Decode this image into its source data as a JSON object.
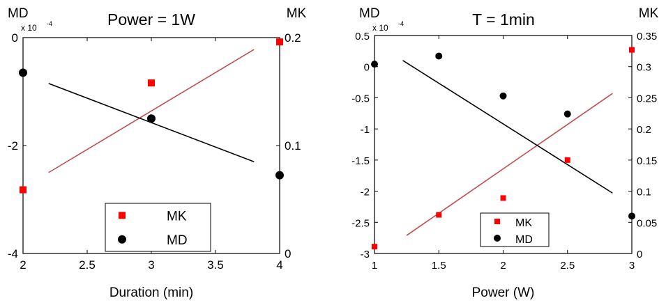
{
  "chart_data": [
    {
      "type": "scatter",
      "title": "Power = 1W",
      "xlabel": "Duration (min)",
      "y_left_label": "MD",
      "y_left_exponent": "x 10",
      "y_left_exponent_power": "-4",
      "y_right_label": "MK",
      "xlim": [
        2,
        4
      ],
      "ylim_left": [
        -4,
        0
      ],
      "ylim_right": [
        0,
        0.2
      ],
      "x_ticks": [
        "2",
        "2.5",
        "3",
        "3.5",
        "4"
      ],
      "y_left_ticks": [
        "0",
        "-2",
        "-4"
      ],
      "y_right_ticks": [
        "0.2",
        "0.1",
        "0"
      ],
      "grid": false,
      "legend_position": "bottom-center",
      "series": [
        {
          "name": "MK",
          "axis": "right",
          "marker": "square",
          "color": "#ff0000",
          "x": [
            2,
            3,
            4
          ],
          "y": [
            0.059,
            0.158,
            0.196
          ]
        },
        {
          "name": "MD",
          "axis": "left",
          "marker": "circle",
          "color": "#000000",
          "x": [
            2,
            3,
            4
          ],
          "y": [
            -0.65,
            -1.5,
            -2.55
          ]
        }
      ],
      "fit_lines": [
        {
          "series": "MK",
          "axis": "right",
          "color": "#c0504d",
          "x": [
            2.2,
            3.8
          ],
          "y": [
            0.075,
            0.189
          ]
        },
        {
          "series": "MD",
          "axis": "left",
          "color": "#000000",
          "x": [
            2.2,
            3.8
          ],
          "y": [
            -0.85,
            -2.3
          ]
        }
      ]
    },
    {
      "type": "scatter",
      "title": "T = 1min",
      "xlabel": "Power (W)",
      "y_left_label": "MD",
      "y_left_exponent": "x 10",
      "y_left_exponent_power": "-4",
      "y_right_label": "MK",
      "xlim": [
        1,
        3
      ],
      "ylim_left": [
        -3,
        0.5
      ],
      "ylim_right": [
        0,
        0.35
      ],
      "x_ticks": [
        "1",
        "1.5",
        "2",
        "2.5",
        "3"
      ],
      "y_left_ticks": [
        "0.5",
        "0",
        "-0.5",
        "-1",
        "-1.5",
        "-2",
        "-2.5",
        "-3"
      ],
      "y_right_ticks": [
        "0.35",
        "0.3",
        "0.25",
        "0.2",
        "0.15",
        "0.1",
        "0.05",
        "0"
      ],
      "grid": false,
      "legend_position": "bottom-center",
      "series": [
        {
          "name": "MK",
          "axis": "right",
          "marker": "square",
          "color": "#ff0000",
          "x": [
            1,
            1.5,
            2,
            2.5,
            3
          ],
          "y": [
            0.011,
            0.062,
            0.089,
            0.15,
            0.327
          ]
        },
        {
          "name": "MD",
          "axis": "left",
          "marker": "circle",
          "color": "#000000",
          "x": [
            1,
            1.5,
            2,
            2.5,
            3
          ],
          "y": [
            0.04,
            0.17,
            -0.47,
            -0.76,
            -2.4
          ]
        }
      ],
      "fit_lines": [
        {
          "series": "MK",
          "axis": "right",
          "color": "#c0504d",
          "x": [
            1.25,
            2.85
          ],
          "y": [
            0.029,
            0.257
          ]
        },
        {
          "series": "MD",
          "axis": "left",
          "color": "#000000",
          "x": [
            1.22,
            2.85
          ],
          "y": [
            0.1,
            -2.03
          ]
        }
      ]
    }
  ]
}
